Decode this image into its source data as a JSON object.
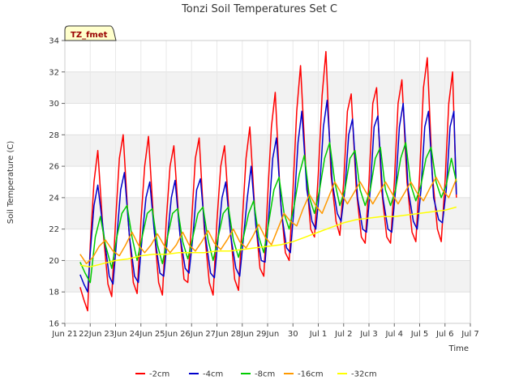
{
  "chart_data": {
    "type": "line",
    "title": "Tonzi Soil Temperatures Set C",
    "xlabel": "Time",
    "ylabel": "Soil Temperature (C)",
    "badge": "TZ_fmet",
    "xlim": [
      0,
      16
    ],
    "ylim": [
      16,
      34
    ],
    "x_ticks": [
      {
        "x": 0,
        "label": "Jun 21"
      },
      {
        "x": 1,
        "label": "22Jun"
      },
      {
        "x": 2,
        "label": "23Jun"
      },
      {
        "x": 3,
        "label": "24Jun"
      },
      {
        "x": 4,
        "label": "25Jun"
      },
      {
        "x": 5,
        "label": "26Jun"
      },
      {
        "x": 6,
        "label": "27Jun"
      },
      {
        "x": 7,
        "label": "28Jun"
      },
      {
        "x": 8,
        "label": "29Jun"
      },
      {
        "x": 9,
        "label": "30"
      },
      {
        "x": 10,
        "label": "Jul 1"
      },
      {
        "x": 11,
        "label": "Jul 2"
      },
      {
        "x": 12,
        "label": "Jul 3"
      },
      {
        "x": 13,
        "label": "Jul 4"
      },
      {
        "x": 14,
        "label": "Jul 5"
      },
      {
        "x": 15,
        "label": "Jul 6"
      },
      {
        "x": 16,
        "label": "Jul 7"
      }
    ],
    "y_ticks": [
      16,
      18,
      20,
      22,
      24,
      26,
      28,
      30,
      32,
      34
    ],
    "grid": true,
    "bands": [
      [
        18,
        20
      ],
      [
        22,
        24
      ],
      [
        26,
        28
      ],
      [
        30,
        32
      ]
    ],
    "legend_position": "bottom",
    "series": [
      {
        "name": "-2cm",
        "color": "#ff0000",
        "x": [
          0.6,
          0.75,
          0.9,
          1.0,
          1.15,
          1.3,
          1.5,
          1.7,
          1.85,
          2.0,
          2.15,
          2.3,
          2.5,
          2.7,
          2.85,
          3.0,
          3.15,
          3.3,
          3.5,
          3.7,
          3.85,
          4.0,
          4.15,
          4.3,
          4.5,
          4.7,
          4.85,
          5.0,
          5.15,
          5.3,
          5.5,
          5.7,
          5.85,
          6.0,
          6.15,
          6.3,
          6.5,
          6.7,
          6.85,
          7.0,
          7.15,
          7.3,
          7.5,
          7.7,
          7.85,
          8.0,
          8.15,
          8.3,
          8.5,
          8.7,
          8.85,
          9.0,
          9.15,
          9.3,
          9.5,
          9.7,
          9.85,
          10.0,
          10.15,
          10.3,
          10.5,
          10.7,
          10.85,
          11.0,
          11.15,
          11.3,
          11.5,
          11.7,
          11.85,
          12.0,
          12.15,
          12.3,
          12.5,
          12.7,
          12.85,
          13.0,
          13.15,
          13.3,
          13.5,
          13.7,
          13.85,
          14.0,
          14.15,
          14.3,
          14.5,
          14.7,
          14.85,
          15.0,
          15.15,
          15.3,
          15.45
        ],
        "y": [
          18.3,
          17.5,
          16.8,
          21.0,
          25.0,
          27.0,
          22.0,
          18.5,
          17.7,
          22.5,
          26.5,
          28.0,
          22.5,
          18.6,
          17.9,
          22.5,
          26.0,
          27.9,
          22.5,
          18.6,
          17.8,
          22.5,
          26.0,
          27.3,
          22.5,
          18.8,
          18.6,
          22.5,
          26.5,
          27.8,
          22.0,
          18.6,
          17.8,
          22.5,
          26.0,
          27.3,
          22.5,
          18.8,
          18.1,
          22.5,
          26.5,
          28.5,
          23.0,
          19.5,
          19.0,
          24.0,
          28.5,
          30.7,
          24.0,
          20.5,
          20.0,
          24.5,
          29.5,
          32.4,
          26.0,
          22.0,
          21.5,
          25.5,
          30.5,
          33.3,
          25.5,
          22.5,
          21.6,
          25.0,
          29.5,
          30.6,
          24.5,
          21.5,
          21.1,
          25.0,
          30.0,
          31.0,
          24.5,
          21.5,
          21.1,
          25.0,
          30.0,
          31.5,
          25.0,
          21.8,
          21.2,
          25.5,
          31.0,
          32.9,
          25.5,
          22.0,
          21.2,
          25.0,
          30.0,
          32.0,
          24.0
        ]
      },
      {
        "name": "-4cm",
        "color": "#0000cc",
        "x": [
          0.6,
          0.75,
          0.9,
          1.0,
          1.15,
          1.3,
          1.55,
          1.75,
          1.9,
          2.05,
          2.2,
          2.35,
          2.55,
          2.75,
          2.9,
          3.05,
          3.2,
          3.35,
          3.55,
          3.75,
          3.9,
          4.05,
          4.2,
          4.35,
          4.55,
          4.75,
          4.9,
          5.05,
          5.2,
          5.35,
          5.55,
          5.75,
          5.9,
          6.05,
          6.2,
          6.35,
          6.55,
          6.75,
          6.9,
          7.05,
          7.2,
          7.35,
          7.55,
          7.75,
          7.9,
          8.05,
          8.2,
          8.35,
          8.55,
          8.75,
          8.9,
          9.05,
          9.2,
          9.35,
          9.55,
          9.75,
          9.9,
          10.05,
          10.2,
          10.35,
          10.55,
          10.75,
          10.9,
          11.05,
          11.2,
          11.35,
          11.55,
          11.75,
          11.9,
          12.05,
          12.2,
          12.35,
          12.55,
          12.75,
          12.9,
          13.05,
          13.2,
          13.35,
          13.55,
          13.75,
          13.9,
          14.05,
          14.2,
          14.35,
          14.55,
          14.75,
          14.9,
          15.05,
          15.2,
          15.35,
          15.45
        ],
        "y": [
          19.1,
          18.5,
          18.0,
          20.5,
          23.5,
          24.8,
          21.5,
          19.0,
          18.5,
          21.5,
          24.5,
          25.6,
          21.5,
          19.0,
          18.6,
          21.5,
          24.0,
          25.0,
          21.5,
          19.2,
          19.0,
          21.5,
          24.0,
          25.1,
          21.5,
          19.5,
          19.2,
          21.5,
          24.5,
          25.2,
          21.5,
          19.2,
          18.9,
          21.5,
          24.0,
          25.0,
          21.5,
          19.5,
          19.0,
          21.5,
          24.0,
          26.0,
          22.0,
          20.0,
          19.9,
          23.0,
          26.5,
          27.8,
          23.0,
          20.8,
          20.5,
          23.5,
          27.5,
          29.5,
          24.5,
          22.5,
          22.0,
          24.5,
          28.5,
          30.2,
          25.0,
          23.0,
          22.5,
          24.5,
          28.0,
          29.0,
          24.0,
          22.0,
          21.8,
          24.5,
          28.5,
          29.2,
          24.0,
          22.0,
          21.8,
          24.5,
          28.5,
          30.0,
          24.5,
          22.5,
          22.0,
          24.5,
          28.5,
          29.5,
          24.0,
          22.6,
          22.4,
          24.5,
          28.5,
          29.5,
          24.2
        ]
      },
      {
        "name": "-8cm",
        "color": "#00cc00",
        "x": [
          0.6,
          0.8,
          1.0,
          1.2,
          1.4,
          1.6,
          1.85,
          2.05,
          2.25,
          2.45,
          2.65,
          2.85,
          3.05,
          3.25,
          3.45,
          3.65,
          3.85,
          4.05,
          4.25,
          4.45,
          4.65,
          4.85,
          5.05,
          5.25,
          5.45,
          5.65,
          5.85,
          6.05,
          6.25,
          6.45,
          6.65,
          6.85,
          7.05,
          7.25,
          7.45,
          7.65,
          7.85,
          8.05,
          8.25,
          8.45,
          8.65,
          8.85,
          9.05,
          9.25,
          9.45,
          9.65,
          9.85,
          10.05,
          10.25,
          10.45,
          10.65,
          10.85,
          11.05,
          11.25,
          11.45,
          11.65,
          11.85,
          12.05,
          12.25,
          12.45,
          12.65,
          12.85,
          13.05,
          13.25,
          13.45,
          13.65,
          13.85,
          14.05,
          14.25,
          14.45,
          14.65,
          14.85,
          15.05,
          15.25,
          15.45
        ],
        "y": [
          19.9,
          19.2,
          18.6,
          21.5,
          22.8,
          21.0,
          19.5,
          21.5,
          23.0,
          23.5,
          21.5,
          20.0,
          21.5,
          23.0,
          23.3,
          21.0,
          19.8,
          21.5,
          23.0,
          23.3,
          21.2,
          20.1,
          21.5,
          23.0,
          23.4,
          21.3,
          20.0,
          21.5,
          23.0,
          23.4,
          21.3,
          20.2,
          21.5,
          23.0,
          23.8,
          21.5,
          20.5,
          22.5,
          24.5,
          25.3,
          23.0,
          22.0,
          23.5,
          25.5,
          26.7,
          24.0,
          23.0,
          24.5,
          26.5,
          27.5,
          25.0,
          23.5,
          24.5,
          26.5,
          27.0,
          24.5,
          23.5,
          24.5,
          26.5,
          27.2,
          24.5,
          23.5,
          24.5,
          26.5,
          27.5,
          24.8,
          23.8,
          24.8,
          26.5,
          27.2,
          25.0,
          24.0,
          24.8,
          26.5,
          25.0
        ]
      },
      {
        "name": "-16cm",
        "color": "#ff9900",
        "x": [
          0.6,
          0.85,
          1.1,
          1.35,
          1.6,
          1.9,
          2.15,
          2.4,
          2.65,
          2.9,
          3.15,
          3.4,
          3.65,
          3.9,
          4.15,
          4.4,
          4.65,
          4.9,
          5.15,
          5.4,
          5.65,
          5.9,
          6.15,
          6.4,
          6.65,
          6.9,
          7.15,
          7.4,
          7.65,
          7.9,
          8.15,
          8.4,
          8.65,
          8.9,
          9.15,
          9.4,
          9.65,
          9.9,
          10.15,
          10.4,
          10.65,
          10.9,
          11.15,
          11.4,
          11.65,
          11.9,
          12.15,
          12.4,
          12.65,
          12.9,
          13.15,
          13.4,
          13.65,
          13.9,
          14.15,
          14.4,
          14.65,
          14.9,
          15.15,
          15.45
        ],
        "y": [
          20.4,
          19.8,
          20.2,
          20.9,
          21.3,
          20.6,
          20.3,
          21.0,
          21.8,
          21.0,
          20.5,
          21.0,
          21.7,
          21.0,
          20.5,
          21.0,
          21.8,
          21.0,
          20.6,
          21.2,
          21.9,
          21.1,
          20.7,
          21.3,
          22.0,
          21.2,
          20.8,
          21.5,
          22.3,
          21.5,
          21.0,
          22.0,
          23.0,
          22.5,
          22.2,
          23.3,
          24.2,
          23.5,
          23.0,
          24.0,
          25.0,
          24.3,
          23.6,
          24.3,
          25.0,
          24.3,
          23.6,
          24.3,
          25.0,
          24.3,
          23.6,
          24.3,
          25.0,
          24.3,
          23.8,
          24.6,
          25.3,
          24.5,
          24.0,
          25.2
        ]
      },
      {
        "name": "-32cm",
        "color": "#ffff00",
        "x": [
          0.6,
          1.0,
          1.5,
          2.0,
          2.5,
          3.0,
          3.5,
          4.0,
          4.5,
          5.0,
          5.5,
          6.0,
          6.5,
          7.0,
          7.5,
          8.0,
          8.5,
          9.0,
          9.5,
          10.0,
          10.5,
          11.0,
          11.5,
          12.0,
          12.5,
          13.0,
          13.5,
          14.0,
          14.5,
          15.0,
          15.45
        ],
        "y": [
          19.7,
          19.6,
          19.8,
          20.0,
          20.1,
          20.3,
          20.4,
          20.4,
          20.5,
          20.5,
          20.5,
          20.6,
          20.6,
          20.7,
          20.8,
          20.9,
          21.0,
          21.2,
          21.5,
          21.8,
          22.1,
          22.4,
          22.6,
          22.7,
          22.8,
          22.8,
          22.9,
          23.0,
          23.1,
          23.2,
          23.4
        ]
      }
    ]
  }
}
